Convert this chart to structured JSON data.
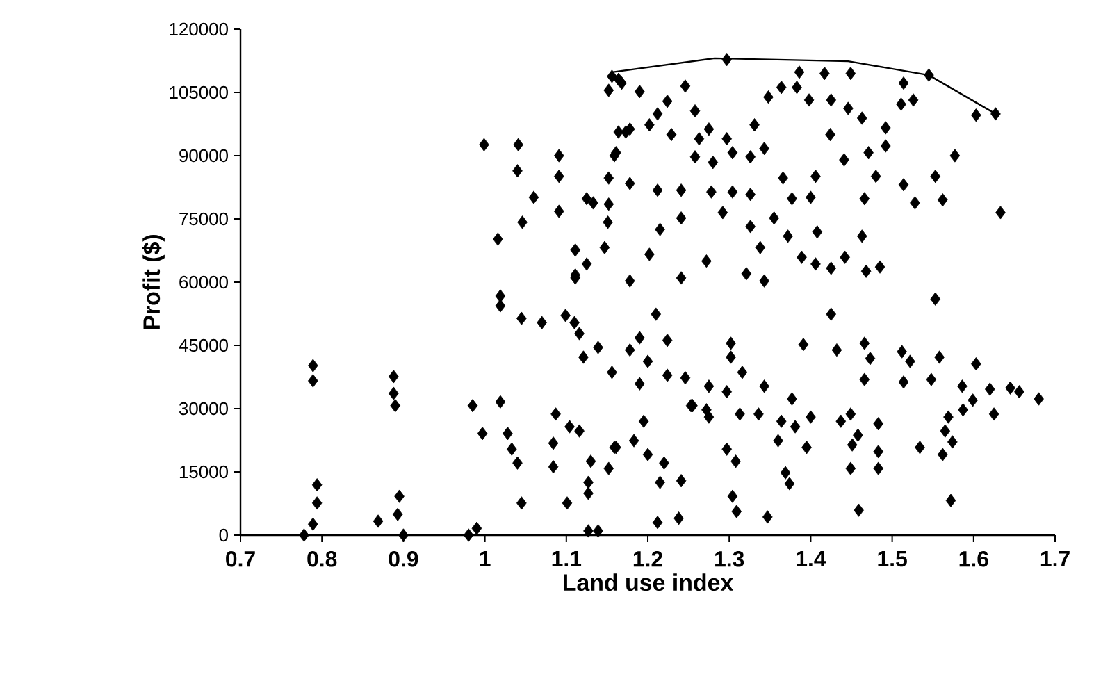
{
  "chart_data": {
    "type": "scatter",
    "xlabel": "Land use index",
    "ylabel": "Profit ($)",
    "xlim": [
      0.7,
      1.7
    ],
    "ylim": [
      0,
      120000
    ],
    "xticks": [
      0.7,
      0.8,
      0.9,
      1,
      1.1,
      1.2,
      1.3,
      1.4,
      1.5,
      1.6,
      1.7
    ],
    "yticks": [
      0,
      15000,
      30000,
      45000,
      60000,
      75000,
      90000,
      105000,
      120000
    ],
    "grid": false,
    "series": [
      {
        "color": "#000000",
        "marker": "diamond",
        "x": [
          0.789,
          0.789,
          0.794,
          0.794,
          0.789,
          0.778,
          0.888,
          0.888,
          0.89,
          0.895,
          0.893,
          0.869,
          0.9,
          0.98,
          0.99,
          0.985,
          0.997,
          1.019,
          1.028,
          1.033,
          1.04,
          1.045,
          1.019,
          1.019,
          1.045,
          1.07,
          1.101,
          1.087,
          1.084,
          1.084,
          1.104,
          1.116,
          1.13,
          1.127,
          1.127,
          1.127,
          1.139,
          1.159,
          1.152,
          1.099,
          1.11,
          1.116,
          1.121,
          1.139,
          1.156,
          1.111,
          0.999,
          1.041,
          1.091,
          1.04,
          1.091,
          1.06,
          1.091,
          1.046,
          1.016,
          1.111,
          1.125,
          1.111,
          1.125,
          1.133,
          1.152,
          1.151,
          1.147,
          1.152,
          1.159,
          1.164,
          1.152,
          1.156,
          1.164,
          1.19,
          1.246,
          1.224,
          1.168,
          1.173,
          1.202,
          1.212,
          1.258,
          1.275,
          1.297,
          1.331,
          1.348,
          1.364,
          1.386,
          1.417,
          1.449,
          1.383,
          1.398,
          1.425,
          1.446,
          1.463,
          1.492,
          1.514,
          1.511,
          1.526,
          1.603,
          1.577,
          1.553,
          1.514,
          1.528,
          1.562,
          1.633,
          1.48,
          1.466,
          1.492,
          1.471,
          1.441,
          1.424,
          1.406,
          1.377,
          1.4,
          1.366,
          1.343,
          1.326,
          1.304,
          1.28,
          1.258,
          1.263,
          1.229,
          1.178,
          1.161,
          1.178,
          1.212,
          1.241,
          1.278,
          1.304,
          1.326,
          1.292,
          1.241,
          1.215,
          1.202,
          1.178,
          1.241,
          1.272,
          1.326,
          1.355,
          1.372,
          1.338,
          1.343,
          1.321,
          1.389,
          1.406,
          1.425,
          1.442,
          1.463,
          1.408,
          1.485,
          1.468,
          1.553,
          1.425,
          1.21,
          1.19,
          1.178,
          1.224,
          1.2,
          1.19,
          1.224,
          1.246,
          1.255,
          1.275,
          1.297,
          1.275,
          1.302,
          1.302,
          1.316,
          1.343,
          1.313,
          1.336,
          1.377,
          1.364,
          1.381,
          1.4,
          1.36,
          1.395,
          1.391,
          1.432,
          1.466,
          1.473,
          1.466,
          1.437,
          1.449,
          1.483,
          1.458,
          1.451,
          1.483,
          1.449,
          1.483,
          1.459,
          1.512,
          1.522,
          1.558,
          1.514,
          1.548,
          1.603,
          1.586,
          1.62,
          1.645,
          1.656,
          1.68,
          1.599,
          1.587,
          1.625,
          1.569,
          1.565,
          1.574,
          1.562,
          1.534,
          1.572,
          1.195,
          1.183,
          1.161,
          1.2,
          1.22,
          1.215,
          1.241,
          1.212,
          1.238,
          1.297,
          1.308,
          1.304,
          1.309,
          1.347,
          1.369,
          1.374,
          1.272,
          1.253,
          1.627,
          1.545,
          1.297
        ],
        "values": [
          40200,
          36600,
          11900,
          7600,
          2600,
          0,
          37600,
          33600,
          30700,
          9200,
          4900,
          3300,
          0,
          0,
          1600,
          30700,
          24100,
          31600,
          24100,
          20400,
          17100,
          7600,
          56700,
          54400,
          51400,
          50400,
          7600,
          28700,
          21800,
          16200,
          25700,
          24700,
          17500,
          12500,
          9900,
          1000,
          1000,
          20800,
          15800,
          52100,
          50400,
          47800,
          42200,
          44500,
          38600,
          61000,
          92600,
          92600,
          90000,
          86400,
          85100,
          80100,
          76800,
          74200,
          70200,
          67600,
          64300,
          61700,
          79800,
          78800,
          78500,
          74200,
          68200,
          84700,
          90000,
          95600,
          105500,
          108800,
          108100,
          105200,
          106500,
          102900,
          107200,
          95600,
          97300,
          99900,
          100600,
          96300,
          94000,
          97300,
          103900,
          106200,
          109800,
          109500,
          109500,
          106200,
          103200,
          103200,
          101200,
          98900,
          96600,
          107200,
          102200,
          103200,
          99600,
          90000,
          85100,
          83100,
          78800,
          79500,
          76500,
          85100,
          79800,
          92300,
          90700,
          89000,
          95000,
          85100,
          79800,
          80100,
          84700,
          91700,
          89700,
          90700,
          88400,
          89700,
          94000,
          95000,
          96300,
          90700,
          83400,
          81800,
          81800,
          81400,
          81400,
          80800,
          76500,
          75200,
          72500,
          66600,
          60300,
          61000,
          65000,
          73200,
          75200,
          70900,
          68200,
          60300,
          62000,
          65900,
          64300,
          63300,
          65900,
          70900,
          71900,
          63600,
          62600,
          56000,
          52400,
          52400,
          46800,
          43900,
          46200,
          41200,
          35900,
          37900,
          37300,
          30700,
          35300,
          34000,
          28000,
          45500,
          42200,
          38600,
          35300,
          28700,
          28700,
          32300,
          27000,
          25700,
          28000,
          22400,
          20800,
          45200,
          43900,
          45500,
          41900,
          36900,
          27000,
          28700,
          26400,
          23700,
          21400,
          19800,
          15800,
          15800,
          5900,
          43500,
          41200,
          42200,
          36300,
          36900,
          40600,
          35300,
          34600,
          34900,
          34000,
          32300,
          32000,
          29700,
          28700,
          28000,
          24700,
          22100,
          19100,
          20800,
          8200,
          27000,
          22400,
          20800,
          19100,
          17100,
          12500,
          12900,
          3000,
          4000,
          20400,
          17500,
          9200,
          5600,
          4300,
          14800,
          12200,
          29700,
          30700,
          99900,
          109100,
          112800
        ]
      },
      {
        "type": "line",
        "color": "#000000",
        "marker": "none",
        "line_style": "solid",
        "x": [
          1.156,
          1.282,
          1.446,
          1.545,
          1.627
        ],
        "values": [
          109800,
          113100,
          112400,
          109100,
          99900
        ]
      }
    ]
  }
}
